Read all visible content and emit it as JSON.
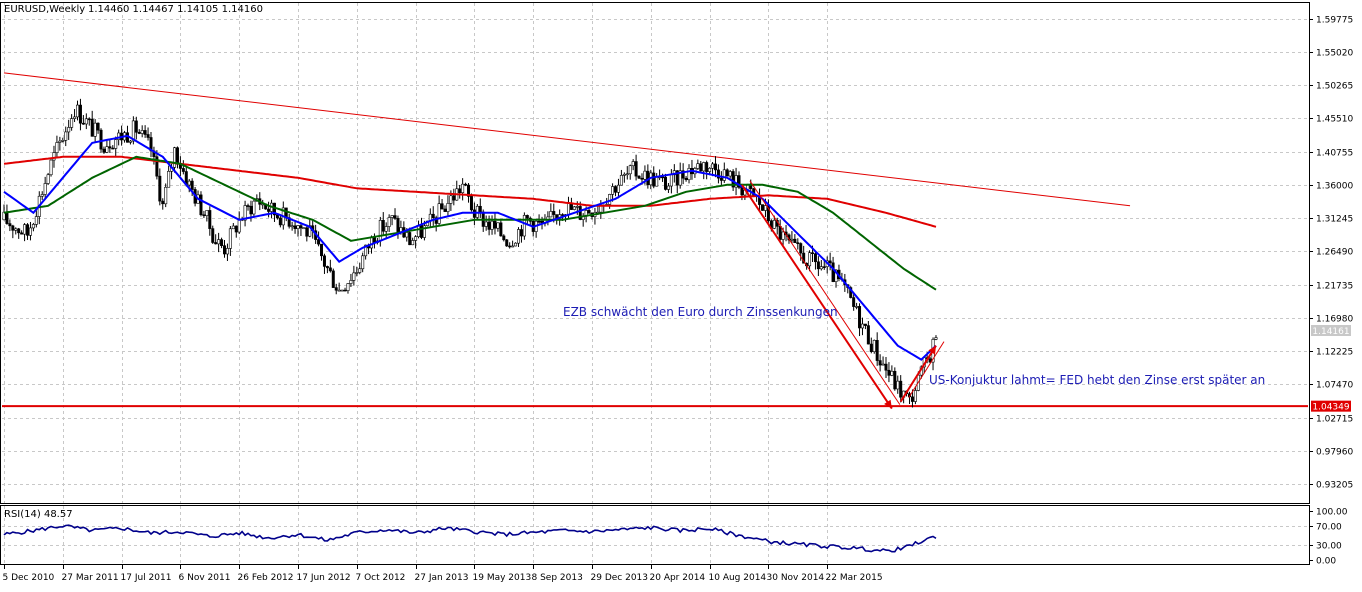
{
  "header": {
    "symbol": "EURUSD,Weekly",
    "ohlc": "1.14460 1.14467 1.14105 1.14160"
  },
  "rsi": {
    "label": "RSI(14) 48.57",
    "ticks": [
      "100.00",
      "70.00",
      "30.00",
      "0.00"
    ]
  },
  "annotations": {
    "ecb": "EZB schwächt den Euro durch Zinssenkungen",
    "us": "US-Konjuktur lahmt= FED hebt den Zinse erst später an",
    "last_price": "1.14161",
    "support_level": "1.04349"
  },
  "colors": {
    "up_candle": "#ffffff",
    "down_candle": "#000000",
    "fast_ma": "#0000ff",
    "mid_ma": "#006400",
    "slow_ma": "#e00000",
    "rsi_line": "#00008b",
    "trend": "#e00000",
    "annotation_text": "#1c1cb4"
  },
  "chart_data": {
    "type": "candlestick",
    "y_ticks": [
      "1.59775",
      "1.55020",
      "1.50265",
      "1.45510",
      "1.40755",
      "1.36000",
      "1.31245",
      "1.26490",
      "1.21735",
      "1.16980",
      "1.12225",
      "1.07470",
      "1.02715",
      "0.97960",
      "0.93205"
    ],
    "ylim": [
      0.905,
      1.62
    ],
    "x_ticks": [
      "5 Dec 2010",
      "27 Mar 2011",
      "17 Jul 2011",
      "6 Nov 2011",
      "26 Feb 2012",
      "17 Jun 2012",
      "7 Oct 2012",
      "27 Jan 2013",
      "19 May 2013",
      "8 Sep 2013",
      "29 Dec 2013",
      "20 Apr 2014",
      "10 Aug 2014",
      "30 Nov 2014",
      "22 Mar 2015"
    ],
    "anchors_close": [
      [
        0,
        1.31
      ],
      [
        8,
        1.29
      ],
      [
        16,
        1.39
      ],
      [
        24,
        1.47
      ],
      [
        28,
        1.45
      ],
      [
        34,
        1.42
      ],
      [
        40,
        1.43
      ],
      [
        45,
        1.44
      ],
      [
        50,
        1.41
      ],
      [
        54,
        1.33
      ],
      [
        58,
        1.41
      ],
      [
        63,
        1.36
      ],
      [
        68,
        1.32
      ],
      [
        72,
        1.28
      ],
      [
        75,
        1.27
      ],
      [
        80,
        1.31
      ],
      [
        86,
        1.34
      ],
      [
        92,
        1.32
      ],
      [
        98,
        1.31
      ],
      [
        104,
        1.29
      ],
      [
        110,
        1.24
      ],
      [
        114,
        1.21
      ],
      [
        120,
        1.24
      ],
      [
        126,
        1.29
      ],
      [
        132,
        1.31
      ],
      [
        138,
        1.28
      ],
      [
        144,
        1.3
      ],
      [
        150,
        1.33
      ],
      [
        156,
        1.36
      ],
      [
        160,
        1.32
      ],
      [
        166,
        1.3
      ],
      [
        172,
        1.28
      ],
      [
        178,
        1.31
      ],
      [
        184,
        1.3
      ],
      [
        190,
        1.33
      ],
      [
        196,
        1.32
      ],
      [
        202,
        1.33
      ],
      [
        208,
        1.36
      ],
      [
        214,
        1.38
      ],
      [
        220,
        1.37
      ],
      [
        226,
        1.36
      ],
      [
        232,
        1.38
      ],
      [
        238,
        1.39
      ],
      [
        244,
        1.38
      ],
      [
        250,
        1.36
      ],
      [
        256,
        1.34
      ],
      [
        262,
        1.3
      ],
      [
        268,
        1.27
      ],
      [
        274,
        1.25
      ],
      [
        280,
        1.24
      ],
      [
        286,
        1.21
      ],
      [
        292,
        1.16
      ],
      [
        298,
        1.11
      ],
      [
        304,
        1.07
      ],
      [
        308,
        1.05
      ],
      [
        312,
        1.09
      ],
      [
        315,
        1.12
      ],
      [
        317,
        1.1416
      ]
    ],
    "fast_ma": [
      [
        0,
        1.35
      ],
      [
        10,
        1.32
      ],
      [
        20,
        1.37
      ],
      [
        30,
        1.42
      ],
      [
        42,
        1.43
      ],
      [
        54,
        1.4
      ],
      [
        66,
        1.34
      ],
      [
        80,
        1.31
      ],
      [
        92,
        1.32
      ],
      [
        104,
        1.3
      ],
      [
        114,
        1.25
      ],
      [
        122,
        1.27
      ],
      [
        134,
        1.29
      ],
      [
        146,
        1.31
      ],
      [
        156,
        1.32
      ],
      [
        168,
        1.32
      ],
      [
        180,
        1.3
      ],
      [
        194,
        1.32
      ],
      [
        208,
        1.34
      ],
      [
        220,
        1.37
      ],
      [
        234,
        1.38
      ],
      [
        246,
        1.37
      ],
      [
        258,
        1.34
      ],
      [
        270,
        1.29
      ],
      [
        282,
        1.24
      ],
      [
        294,
        1.18
      ],
      [
        304,
        1.13
      ],
      [
        312,
        1.11
      ],
      [
        317,
        1.13
      ]
    ],
    "mid_ma": [
      [
        0,
        1.32
      ],
      [
        15,
        1.33
      ],
      [
        30,
        1.37
      ],
      [
        45,
        1.4
      ],
      [
        60,
        1.39
      ],
      [
        75,
        1.36
      ],
      [
        90,
        1.33
      ],
      [
        105,
        1.31
      ],
      [
        118,
        1.28
      ],
      [
        132,
        1.29
      ],
      [
        146,
        1.3
      ],
      [
        160,
        1.31
      ],
      [
        175,
        1.31
      ],
      [
        190,
        1.31
      ],
      [
        204,
        1.32
      ],
      [
        218,
        1.33
      ],
      [
        232,
        1.35
      ],
      [
        246,
        1.36
      ],
      [
        258,
        1.36
      ],
      [
        270,
        1.35
      ],
      [
        282,
        1.32
      ],
      [
        294,
        1.28
      ],
      [
        306,
        1.24
      ],
      [
        317,
        1.21
      ]
    ],
    "slow_ma": [
      [
        0,
        1.39
      ],
      [
        20,
        1.4
      ],
      [
        40,
        1.4
      ],
      [
        60,
        1.39
      ],
      [
        80,
        1.38
      ],
      [
        100,
        1.37
      ],
      [
        120,
        1.355
      ],
      [
        140,
        1.35
      ],
      [
        160,
        1.345
      ],
      [
        180,
        1.34
      ],
      [
        200,
        1.33
      ],
      [
        220,
        1.33
      ],
      [
        240,
        1.34
      ],
      [
        260,
        1.345
      ],
      [
        280,
        1.34
      ],
      [
        300,
        1.32
      ],
      [
        317,
        1.3
      ]
    ],
    "trend_line": [
      [
        0,
        1.52
      ],
      [
        383,
        1.33
      ]
    ],
    "support_line": 1.04349,
    "arrows": [
      {
        "from": [
          251,
          1.36
        ],
        "to": [
          302,
          1.04
        ]
      },
      {
        "from": [
          305,
          1.05
        ],
        "to": [
          317,
          1.13
        ]
      }
    ],
    "rsi": [
      [
        0,
        52
      ],
      [
        10,
        60
      ],
      [
        20,
        70
      ],
      [
        30,
        60
      ],
      [
        40,
        65
      ],
      [
        50,
        55
      ],
      [
        60,
        58
      ],
      [
        70,
        48
      ],
      [
        80,
        55
      ],
      [
        90,
        45
      ],
      [
        100,
        52
      ],
      [
        110,
        40
      ],
      [
        120,
        56
      ],
      [
        130,
        62
      ],
      [
        140,
        55
      ],
      [
        150,
        65
      ],
      [
        160,
        58
      ],
      [
        170,
        52
      ],
      [
        180,
        56
      ],
      [
        190,
        60
      ],
      [
        200,
        58
      ],
      [
        210,
        62
      ],
      [
        220,
        66
      ],
      [
        230,
        60
      ],
      [
        240,
        64
      ],
      [
        250,
        50
      ],
      [
        260,
        38
      ],
      [
        270,
        32
      ],
      [
        280,
        28
      ],
      [
        290,
        24
      ],
      [
        300,
        18
      ],
      [
        306,
        24
      ],
      [
        312,
        38
      ],
      [
        317,
        48
      ]
    ]
  }
}
